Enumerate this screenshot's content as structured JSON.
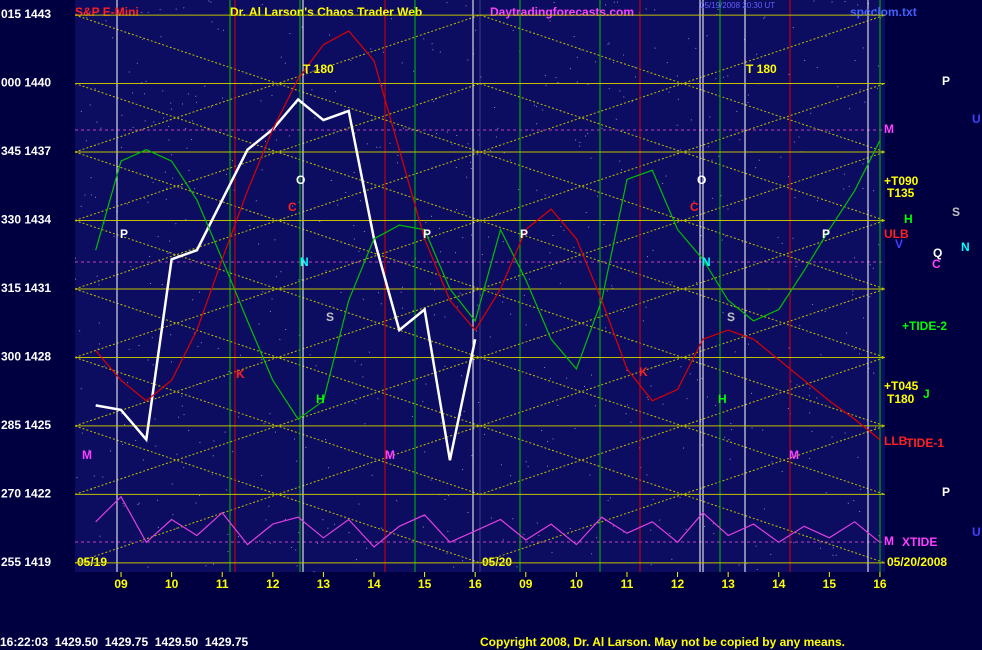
{
  "chart_data": {
    "type": "line",
    "title": "Dr. Al Larson's Chaos Trader Web",
    "symbol": "S&P E-Mini",
    "site": "Daytradingforecasts.com",
    "file": "spcclom.txt",
    "timestamp": "05/19/2008 20:30 UT",
    "dates": [
      "05/19",
      "05/20",
      "05/20/2008"
    ],
    "status": "16:22:03  1429.50  1429.75  1429.50  1429.75",
    "copyright": "Copyright 2008, Dr. Al Larson. May not be copied by any means.",
    "x": [
      8.5,
      9,
      9.5,
      10,
      10.5,
      11,
      11.5,
      12,
      12.5,
      13,
      13.5,
      14,
      14.5,
      15,
      15.5,
      16,
      16.5,
      17,
      17.5,
      18,
      18.5,
      19,
      19.5,
      20,
      20.5,
      21,
      21.5,
      22,
      22.5,
      23,
      23.5,
      24
    ],
    "series": [
      {
        "color": "#ffffff",
        "values": [
          1425.9,
          1425.7,
          1424.4,
          1432.3,
          1432.7,
          1434.9,
          1437.1,
          1438.0,
          1439.3,
          1438.4,
          1438.8,
          1433.2,
          1429.2,
          1430.1,
          1423.5,
          1428.8,
          null,
          null,
          null,
          null,
          null,
          null,
          null,
          null,
          null,
          null,
          null,
          null,
          null,
          null,
          null,
          null
        ]
      },
      {
        "color": "#00c000",
        "values": [
          1432.7,
          1436.6,
          1437.1,
          1436.6,
          1434.9,
          1432.3,
          1429.6,
          1427.0,
          1425.3,
          1426.1,
          1430.5,
          1433.2,
          1433.8,
          1433.6,
          1431.0,
          1429.6,
          1433.6,
          1431.4,
          1428.8,
          1427.5,
          1430.5,
          1435.8,
          1436.2,
          1433.6,
          1432.3,
          1430.5,
          1429.6,
          1430.1,
          1431.8,
          1433.6,
          1435.3,
          1437.5
        ]
      },
      {
        "color": "#e00000",
        "values": [
          1428.3,
          1427.0,
          1426.1,
          1427.0,
          1429.2,
          1432.3,
          1435.3,
          1438.0,
          1440.2,
          1441.7,
          1442.3,
          1441.0,
          1437.1,
          1433.2,
          1430.5,
          1429.2,
          1431.0,
          1433.6,
          1434.5,
          1433.2,
          1430.5,
          1427.5,
          1426.1,
          1426.6,
          1428.8,
          1429.2,
          1428.8,
          1427.9,
          1427.0,
          1426.1,
          1425.3,
          1424.4
        ]
      },
      {
        "color": "#e040e0",
        "values": [
          1420.8,
          1421.9,
          1419.9,
          1420.9,
          1420.2,
          1421.2,
          1419.8,
          1420.7,
          1421.0,
          1420.1,
          1420.9,
          1419.7,
          1420.6,
          1421.1,
          1419.9,
          1420.4,
          1420.9,
          1420.0,
          1420.7,
          1419.8,
          1421.0,
          1420.3,
          1420.8,
          1419.9,
          1421.2,
          1420.2,
          1420.7,
          1419.9,
          1420.6,
          1420.1,
          1420.8,
          1419.9
        ]
      }
    ],
    "xlim": [
      8.09,
      24.1
    ],
    "xticks": [
      {
        "value": 9,
        "label": "09"
      },
      10,
      11,
      12,
      13,
      14,
      15,
      16,
      {
        "value": 17,
        "label": "09"
      },
      {
        "value": 18,
        "label": "10"
      },
      {
        "value": 19,
        "label": "11"
      },
      {
        "value": 20,
        "label": "12"
      },
      {
        "value": 21,
        "label": "13"
      },
      {
        "value": 22,
        "label": "14"
      },
      {
        "value": 23,
        "label": "15"
      },
      {
        "value": 24,
        "label": "16"
      }
    ],
    "ylim": [
      1418.6,
      1443.66
    ],
    "yticks": [
      {
        "value": 1443,
        "label": "015 1443"
      },
      {
        "value": 1440,
        "label": "000 1440"
      },
      {
        "value": 1437,
        "label": "345 1437"
      },
      {
        "value": 1434,
        "label": "330 1434"
      },
      {
        "value": 1431,
        "label": "315 1431"
      },
      {
        "value": 1428,
        "label": "300 1428"
      },
      {
        "value": 1425,
        "label": "285 1425"
      },
      {
        "value": 1422,
        "label": "270 1422"
      },
      {
        "value": 1419,
        "label": "255 1419"
      }
    ],
    "grid": true,
    "annotations": [
      {
        "text": "T 180",
        "color": "#ffff00"
      },
      {
        "text": "T 180",
        "color": "#ffff00"
      },
      {
        "text": "M",
        "color": "#ff40ff"
      },
      {
        "text": "+T090",
        "color": "#ffff00"
      },
      {
        "text": "T135",
        "color": "#ffff00"
      },
      {
        "text": "H",
        "color": "#00ff00"
      },
      {
        "text": "ULB",
        "color": "#ff2020"
      },
      {
        "text": "V",
        "color": "#4040ff"
      },
      {
        "text": "+TIDE-2",
        "color": "#00ff00"
      },
      {
        "text": "+T045",
        "color": "#ffff00"
      },
      {
        "text": "T180",
        "color": "#ffff00"
      },
      {
        "text": "J",
        "color": "#00ff00"
      },
      {
        "text": "LLB",
        "color": "#ff2020"
      },
      {
        "text": "TIDE-1",
        "color": "#ff2020"
      },
      {
        "text": "M",
        "color": "#ff40ff"
      },
      {
        "text": "XTIDE",
        "color": "#ff40ff"
      },
      {
        "text": "P",
        "color": "#ffffff"
      },
      {
        "text": "S",
        "color": "#c0c0c0"
      },
      {
        "text": "Q",
        "color": "#ffffff"
      },
      {
        "text": "C",
        "color": "#ff40ff"
      },
      {
        "text": "N",
        "color": "#00ffff"
      },
      {
        "text": "P",
        "color": "#ffffff"
      },
      {
        "text": "U",
        "color": "#4040ff"
      },
      {
        "text": "U",
        "color": "#4040ff"
      },
      {
        "text": "P",
        "color": "#ffffff"
      },
      {
        "text": "P",
        "color": "#ffffff"
      },
      {
        "text": "P",
        "color": "#ffffff"
      },
      {
        "text": "P",
        "color": "#ffffff"
      },
      {
        "text": "O",
        "color": "#ffffff"
      },
      {
        "text": "O",
        "color": "#ffffff"
      },
      {
        "text": "C",
        "color": "#ff2020"
      },
      {
        "text": "C",
        "color": "#ff2020"
      },
      {
        "text": "N",
        "color": "#00ffff"
      },
      {
        "text": "N",
        "color": "#00ffff"
      },
      {
        "text": "S",
        "color": "#c0c0c0"
      },
      {
        "text": "S",
        "color": "#c0c0c0"
      },
      {
        "text": "H",
        "color": "#00ff00"
      },
      {
        "text": "H",
        "color": "#00ff00"
      },
      {
        "text": "M",
        "color": "#ff40ff"
      },
      {
        "text": "M",
        "color": "#ff40ff"
      },
      {
        "text": "M",
        "color": "#ff40ff"
      },
      {
        "text": "K",
        "color": "#ff2020"
      },
      {
        "text": "K",
        "color": "#ff2020"
      }
    ]
  }
}
